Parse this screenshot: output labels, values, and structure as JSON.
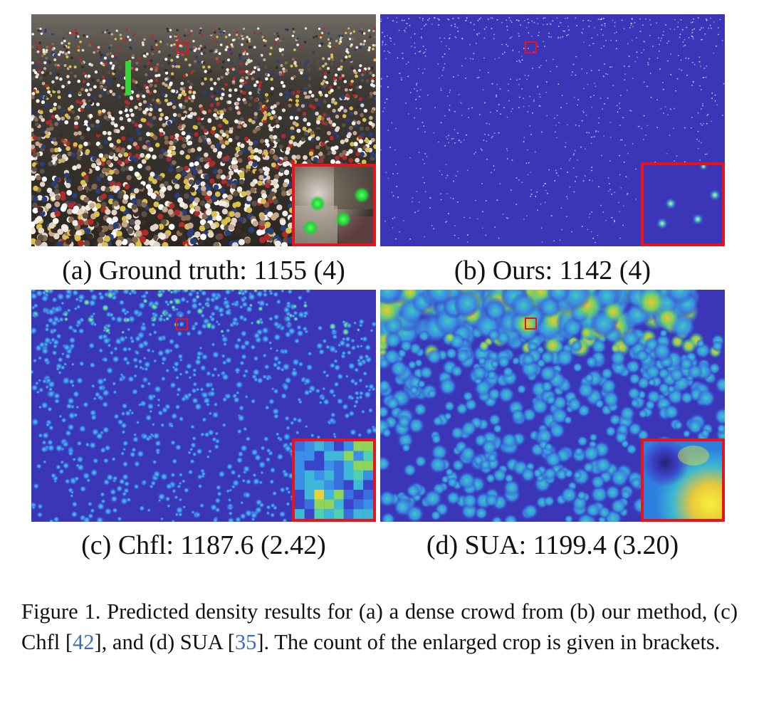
{
  "panels": [
    {
      "id": "a",
      "caption": "(a) Ground truth: 1155 (4)"
    },
    {
      "id": "b",
      "caption": "(b) Ours: 1142 (4)"
    },
    {
      "id": "c",
      "caption": "(c) Chfl: 1187.6 (2.42)"
    },
    {
      "id": "d",
      "caption": "(d) SUA: 1199.4 (3.20)"
    }
  ],
  "figure_caption": {
    "part1": "Figure 1. Predicted density results for (a) a dense crowd from (b) our method, (c) Chfl [",
    "ref1": "42",
    "part2": "], and (d) SUA [",
    "ref2": "35",
    "part3": "].  The count of the enlarged crop is given in brackets."
  },
  "colors": {
    "highlight": "#e8141b",
    "density_background": "#3b35b8",
    "citation": "#3b6fb6"
  }
}
